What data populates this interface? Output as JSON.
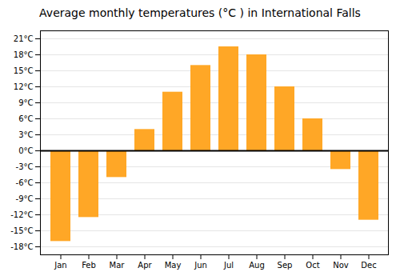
{
  "chart_data": {
    "type": "bar",
    "title": "Average monthly temperatures (°C ) in International Falls",
    "categories": [
      "Jan",
      "Feb",
      "Mar",
      "Apr",
      "May",
      "Jun",
      "Jul",
      "Aug",
      "Sep",
      "Oct",
      "Nov",
      "Dec"
    ],
    "values": [
      -17,
      -12.5,
      -5,
      4,
      11,
      16,
      19.5,
      18,
      12,
      6,
      -3.5,
      -13
    ],
    "color": "#FFA726",
    "ylim": [
      -19.5,
      22.5
    ],
    "yticks": [
      {
        "value": -18,
        "label": "-18°C"
      },
      {
        "value": -15,
        "label": "-15°C"
      },
      {
        "value": -12,
        "label": "-12°C"
      },
      {
        "value": -9,
        "label": "-9°C"
      },
      {
        "value": -6,
        "label": "-6°C"
      },
      {
        "value": -3,
        "label": "-3°C"
      },
      {
        "value": 0,
        "label": "0°C"
      },
      {
        "value": 3,
        "label": "3°C"
      },
      {
        "value": 6,
        "label": "6°C"
      },
      {
        "value": 9,
        "label": "9°C"
      },
      {
        "value": 12,
        "label": "12°C"
      },
      {
        "value": 15,
        "label": "15°C"
      },
      {
        "value": 18,
        "label": "18°C"
      },
      {
        "value": 21,
        "label": "21°C"
      }
    ],
    "grid": true
  }
}
